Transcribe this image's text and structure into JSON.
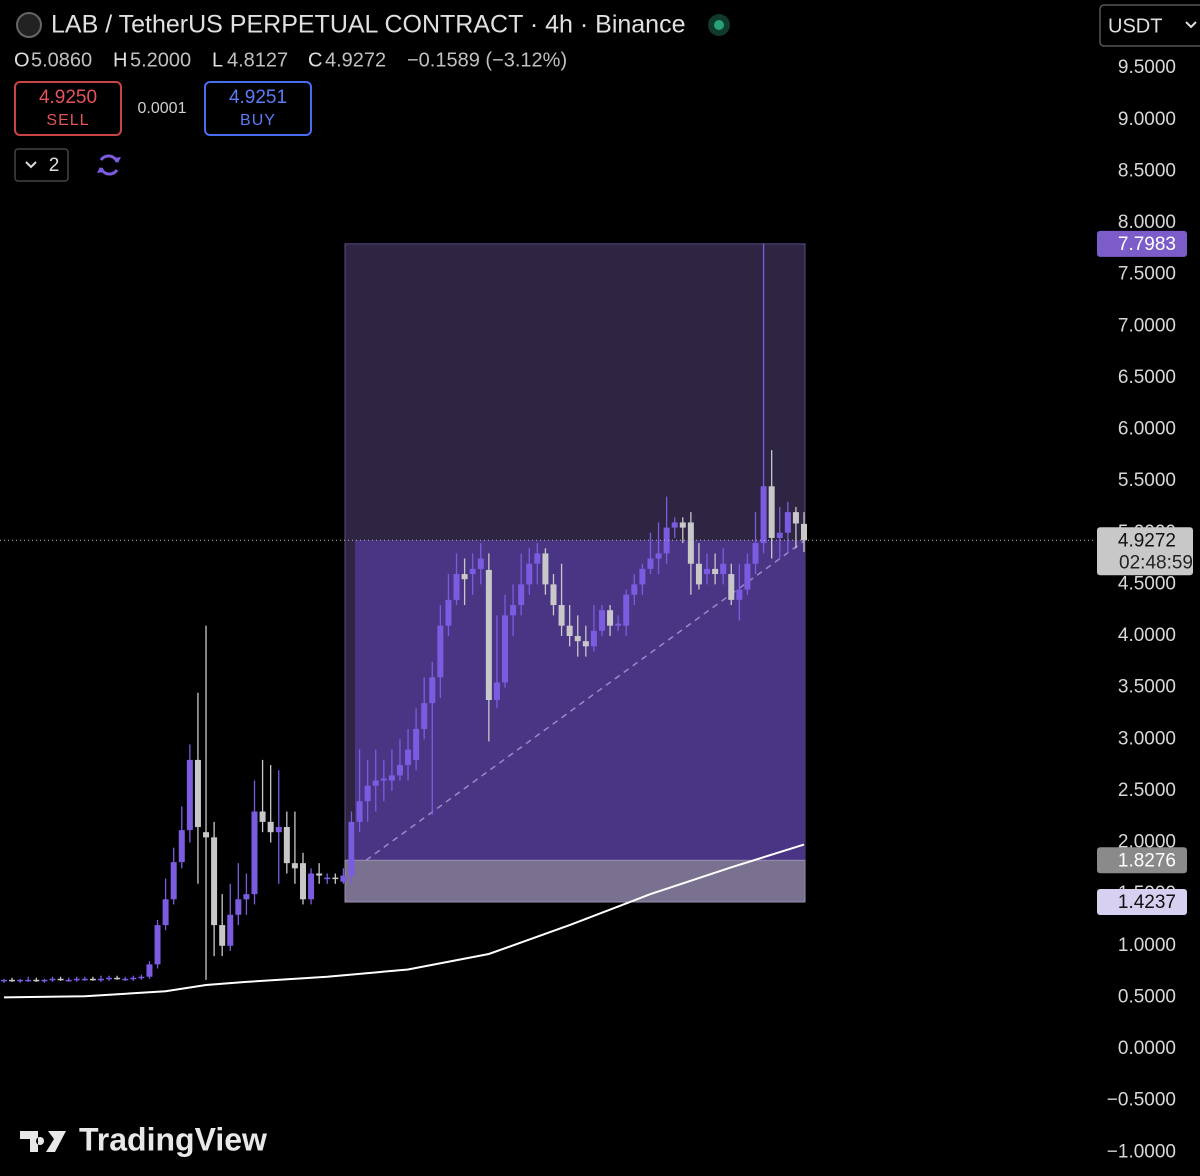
{
  "header": {
    "title": "LAB / TetherUS PERPETUAL CONTRACT · 4h · Binance",
    "ohlc": [
      {
        "key": "O",
        "value": "5.0860"
      },
      {
        "key": "H",
        "value": "5.2000"
      },
      {
        "key": "L",
        "value": "4.8127"
      },
      {
        "key": "C",
        "value": "4.9272"
      }
    ],
    "change": "−0.1589 (−3.12%)",
    "sell": {
      "price": "4.9250",
      "label": "SELL"
    },
    "spread": "0.0001",
    "buy": {
      "price": "4.9251",
      "label": "BUY"
    },
    "count": "2",
    "currency": "USDT"
  },
  "brand": "TradingView",
  "chart_data": {
    "type": "candlestick",
    "up_color": "#7b5ce0",
    "down_color": "#c8c8c8",
    "open": [
      0.66,
      0.67,
      0.66,
      0.67,
      0.67,
      0.66,
      0.67,
      0.68,
      0.67,
      0.67,
      0.68,
      0.68,
      0.67,
      0.68,
      0.69,
      0.68,
      0.68,
      0.69,
      0.7,
      0.82,
      1.2,
      1.45,
      1.81,
      2.12,
      2.8,
      2.1,
      2.05,
      1.2,
      1.0,
      1.3,
      1.45,
      1.5,
      2.3,
      2.2,
      2.1,
      2.15,
      1.8,
      1.8,
      1.45,
      1.7,
      1.65,
      1.66,
      1.62,
      1.68,
      2.2,
      2.4,
      2.55,
      2.6,
      2.6,
      2.65,
      2.75,
      2.8,
      3.1,
      3.35,
      3.6,
      4.1,
      4.35,
      4.6,
      4.6,
      4.65,
      4.64,
      3.38,
      3.55,
      4.2,
      4.3,
      4.5,
      4.7,
      4.8,
      4.5,
      4.3,
      4.1,
      4.0,
      3.95,
      3.9,
      4.05,
      4.25,
      4.1,
      4.1,
      4.4,
      4.5,
      4.65,
      4.75,
      4.8,
      5.05,
      5.1,
      5.1,
      4.7,
      4.6,
      4.65,
      4.6,
      4.6,
      4.35,
      4.45,
      4.7,
      4.9,
      5.45,
      4.95,
      5.0,
      5.2,
      5.086
    ],
    "high": [
      0.68,
      0.69,
      0.68,
      0.7,
      0.69,
      0.68,
      0.7,
      0.7,
      0.69,
      0.7,
      0.7,
      0.7,
      0.71,
      0.71,
      0.71,
      0.7,
      0.71,
      0.72,
      0.85,
      1.25,
      1.65,
      1.95,
      2.35,
      2.95,
      3.45,
      4.1,
      2.2,
      1.5,
      1.6,
      1.8,
      1.7,
      2.6,
      2.8,
      2.75,
      2.7,
      2.3,
      2.3,
      1.9,
      1.75,
      1.8,
      1.7,
      1.7,
      1.75,
      2.3,
      2.9,
      2.8,
      2.9,
      2.8,
      2.9,
      3.0,
      3.1,
      3.3,
      3.6,
      3.75,
      4.3,
      4.6,
      4.8,
      4.75,
      4.8,
      4.9,
      4.8,
      4.2,
      4.4,
      4.5,
      4.8,
      4.85,
      4.9,
      4.85,
      4.6,
      4.7,
      4.3,
      4.2,
      4.1,
      4.3,
      4.3,
      4.3,
      4.2,
      4.45,
      4.6,
      4.7,
      5.0,
      5.1,
      5.35,
      5.15,
      5.15,
      5.2,
      4.9,
      4.8,
      4.8,
      4.85,
      4.7,
      4.7,
      4.8,
      5.2,
      7.8,
      5.8,
      5.25,
      5.3,
      5.25,
      5.2
    ],
    "low": [
      0.64,
      0.65,
      0.64,
      0.65,
      0.65,
      0.64,
      0.65,
      0.66,
      0.65,
      0.65,
      0.66,
      0.66,
      0.65,
      0.66,
      0.67,
      0.66,
      0.66,
      0.67,
      0.68,
      0.78,
      1.15,
      1.4,
      1.75,
      2.0,
      1.6,
      0.67,
      0.9,
      0.9,
      0.95,
      1.2,
      1.3,
      1.4,
      2.1,
      2.0,
      1.6,
      1.7,
      1.6,
      1.4,
      1.4,
      1.6,
      1.6,
      1.6,
      1.6,
      1.6,
      2.1,
      2.2,
      2.3,
      2.4,
      2.5,
      2.6,
      2.6,
      2.7,
      3.0,
      2.27,
      3.4,
      4.0,
      4.3,
      4.3,
      4.4,
      4.5,
      2.98,
      3.3,
      3.5,
      4.0,
      4.2,
      4.4,
      4.5,
      4.4,
      4.2,
      4.0,
      3.9,
      3.8,
      3.8,
      3.85,
      4.0,
      4.0,
      4.05,
      4.0,
      4.3,
      4.4,
      4.6,
      4.6,
      4.7,
      4.95,
      4.9,
      4.4,
      4.45,
      4.5,
      4.5,
      4.5,
      4.3,
      4.15,
      4.4,
      4.6,
      4.8,
      4.75,
      4.75,
      4.8,
      4.85,
      4.8127
    ],
    "close": [
      0.67,
      0.66,
      0.67,
      0.67,
      0.66,
      0.67,
      0.68,
      0.67,
      0.67,
      0.68,
      0.68,
      0.67,
      0.68,
      0.69,
      0.68,
      0.68,
      0.69,
      0.7,
      0.82,
      1.2,
      1.45,
      1.81,
      2.12,
      2.8,
      2.15,
      2.05,
      1.2,
      1.0,
      1.3,
      1.45,
      1.5,
      2.3,
      2.2,
      2.1,
      2.15,
      1.8,
      1.75,
      1.45,
      1.7,
      1.68,
      1.66,
      1.65,
      1.68,
      2.2,
      2.4,
      2.55,
      2.6,
      2.62,
      2.65,
      2.75,
      2.9,
      3.1,
      3.35,
      3.6,
      4.1,
      4.35,
      4.6,
      4.55,
      4.65,
      4.75,
      3.38,
      3.55,
      4.2,
      4.3,
      4.5,
      4.7,
      4.8,
      4.5,
      4.3,
      4.1,
      4.0,
      3.95,
      3.9,
      4.05,
      4.25,
      4.1,
      4.12,
      4.4,
      4.5,
      4.65,
      4.75,
      4.8,
      5.05,
      5.1,
      5.05,
      4.7,
      4.5,
      4.65,
      4.6,
      4.7,
      4.35,
      4.45,
      4.7,
      4.9,
      5.45,
      4.95,
      5.0,
      5.2,
      5.09,
      4.9272
    ],
    "moving_average": {
      "color": "#ffffff",
      "x": [
        0,
        10,
        20,
        25,
        30,
        40,
        50,
        60,
        70,
        80,
        90,
        99
      ],
      "values": [
        0.5,
        0.51,
        0.56,
        0.62,
        0.65,
        0.7,
        0.77,
        0.92,
        1.2,
        1.5,
        1.76,
        1.98
      ]
    },
    "position": {
      "target": 7.7983,
      "entry": 1.8276,
      "stop": 1.4237
    },
    "last_price": 4.9272,
    "countdown": "02:48:59",
    "ylim": [
      -1.23,
      10.16
    ],
    "yticks": [
      {
        "value": -1,
        "label": "−1.0000"
      },
      {
        "value": -0.5,
        "label": "−0.5000"
      },
      {
        "value": 0,
        "label": "0.0000"
      },
      {
        "value": 0.5,
        "label": "0.5000"
      },
      {
        "value": 1,
        "label": "1.0000"
      },
      {
        "value": 1.5,
        "label": "1.5000"
      },
      {
        "value": 2,
        "label": "2.0000"
      },
      {
        "value": 2.5,
        "label": "2.5000"
      },
      {
        "value": 3,
        "label": "3.0000"
      },
      {
        "value": 3.5,
        "label": "3.5000"
      },
      {
        "value": 4,
        "label": "4.0000"
      },
      {
        "value": 4.5,
        "label": "4.5000"
      },
      {
        "value": 5,
        "label": "5.0000"
      },
      {
        "value": 5.5,
        "label": "5.5000"
      },
      {
        "value": 6,
        "label": "6.0000"
      },
      {
        "value": 6.5,
        "label": "6.5000"
      },
      {
        "value": 7,
        "label": "7.0000"
      },
      {
        "value": 7.5,
        "label": "7.5000"
      },
      {
        "value": 8,
        "label": "8.0000"
      },
      {
        "value": 8.5,
        "label": "8.5000"
      },
      {
        "value": 9,
        "label": "9.0000"
      },
      {
        "value": 9.5,
        "label": "9.5000"
      }
    ]
  }
}
